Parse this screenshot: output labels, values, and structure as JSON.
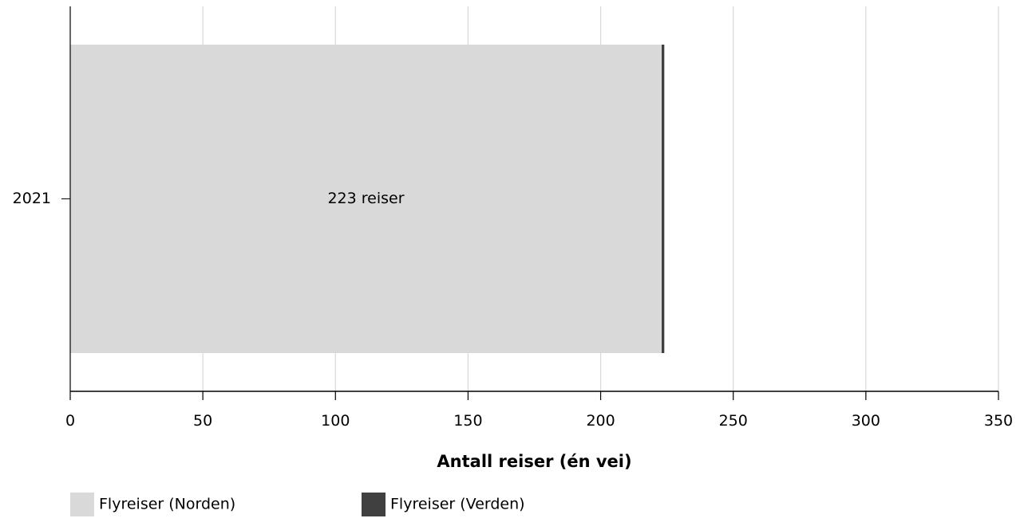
{
  "chart_data": {
    "type": "bar",
    "orientation": "horizontal",
    "stacked": true,
    "categories": [
      "2021"
    ],
    "series": [
      {
        "name": "Flyreiser (Norden)",
        "values": [
          223
        ],
        "color": "#d9d9d9"
      },
      {
        "name": "Flyreiser (Verden)",
        "values": [
          1
        ],
        "color": "#404040"
      }
    ],
    "data_labels": [
      "223 reiser"
    ],
    "xlabel": "Antall reiser (én vei)",
    "ylabel": "",
    "xlim": [
      0,
      350
    ],
    "xticks": [
      0,
      50,
      100,
      150,
      200,
      250,
      300,
      350
    ],
    "xtick_labels": [
      "0",
      "50",
      "100",
      "150",
      "200",
      "250",
      "300",
      "350"
    ],
    "grid": "vertical",
    "grid_color": "#d9d9d9",
    "legend_position": "bottom-left"
  }
}
